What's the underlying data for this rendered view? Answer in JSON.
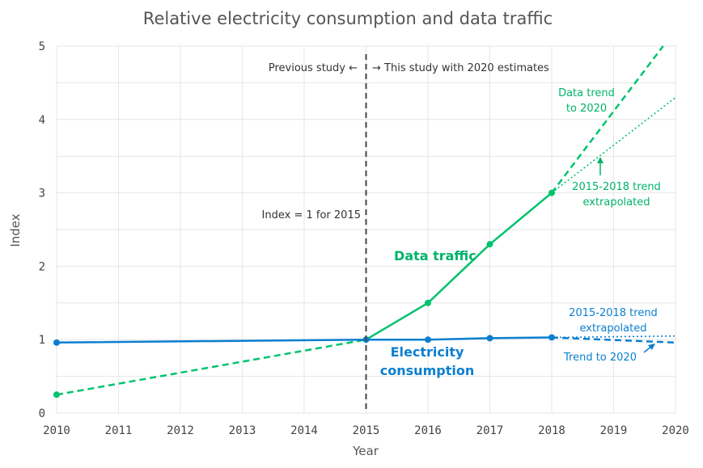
{
  "chart_data": {
    "type": "line",
    "title": "Relative electricity consumption and data traffic",
    "xlabel": "Year",
    "ylabel": "Index",
    "xlim": [
      2010,
      2020
    ],
    "ylim": [
      0,
      5
    ],
    "x_ticks": [
      "2010",
      "2011",
      "2012",
      "2013",
      "2014",
      "2015",
      "2016",
      "2017",
      "2018",
      "2019",
      "2020"
    ],
    "y_ticks": [
      "0",
      "1",
      "2",
      "3",
      "4",
      "5"
    ],
    "grid": true,
    "colors": {
      "data": "#00c36e",
      "electricity": "#0a7fd0",
      "divider": "#444444"
    },
    "series": [
      {
        "name": "Data traffic",
        "style": "solid",
        "color": "#00c36e",
        "x": [
          2015,
          2016,
          2017,
          2018
        ],
        "values": [
          1.0,
          1.5,
          2.3,
          3.0
        ]
      },
      {
        "name": "Data traffic (2010-2015)",
        "style": "dashed",
        "color": "#00c36e",
        "x": [
          2010,
          2015
        ],
        "values": [
          0.25,
          1.0
        ]
      },
      {
        "name": "Data trend to 2020",
        "style": "dashed",
        "color": "#00c36e",
        "x": [
          2018,
          2019.8
        ],
        "values": [
          3.0,
          5.0
        ]
      },
      {
        "name": "Data 2015-2018 trend extrapolated",
        "style": "dotted",
        "color": "#00c36e",
        "x": [
          2018,
          2020
        ],
        "values": [
          3.0,
          4.3
        ]
      },
      {
        "name": "Electricity consumption",
        "style": "solid",
        "color": "#0a7fd0",
        "x": [
          2010,
          2015,
          2016,
          2017,
          2018
        ],
        "values": [
          0.96,
          1.0,
          1.0,
          1.02,
          1.03
        ]
      },
      {
        "name": "Electricity trend to 2020",
        "style": "dashed",
        "color": "#0a7fd0",
        "x": [
          2018,
          2020
        ],
        "values": [
          1.03,
          0.96
        ]
      },
      {
        "name": "Electricity 2015-2018 trend extrapolated",
        "style": "dotted",
        "color": "#0a7fd0",
        "x": [
          2018,
          2020
        ],
        "values": [
          1.03,
          1.05
        ]
      }
    ],
    "markers": [
      {
        "series": "data",
        "x": 2010,
        "y": 0.25
      },
      {
        "series": "data",
        "x": 2016,
        "y": 1.5
      },
      {
        "series": "data",
        "x": 2017,
        "y": 2.3
      },
      {
        "series": "data",
        "x": 2018,
        "y": 3.0
      },
      {
        "series": "electricity",
        "x": 2010,
        "y": 0.96
      },
      {
        "series": "electricity",
        "x": 2015,
        "y": 1.0
      },
      {
        "series": "electricity",
        "x": 2016,
        "y": 1.0
      },
      {
        "series": "electricity",
        "x": 2017,
        "y": 1.02
      },
      {
        "series": "electricity",
        "x": 2018,
        "y": 1.03
      }
    ],
    "divider_x": 2015,
    "annotations": {
      "previous_study": "Previous study ←",
      "this_study": "→ This study with 2020 estimates",
      "index_note": "Index = 1 for 2015",
      "data_traffic_label": "Data traffic",
      "electricity_label_line1": "Electricity",
      "electricity_label_line2": "consumption",
      "data_trend_line1": "Data trend",
      "data_trend_line2": "to 2020",
      "data_extrap_line1": "2015-2018 trend",
      "data_extrap_line2": "extrapolated",
      "elec_extrap_line1": "2015-2018 trend",
      "elec_extrap_line2": "extrapolated",
      "elec_trend": "Trend to 2020"
    }
  }
}
